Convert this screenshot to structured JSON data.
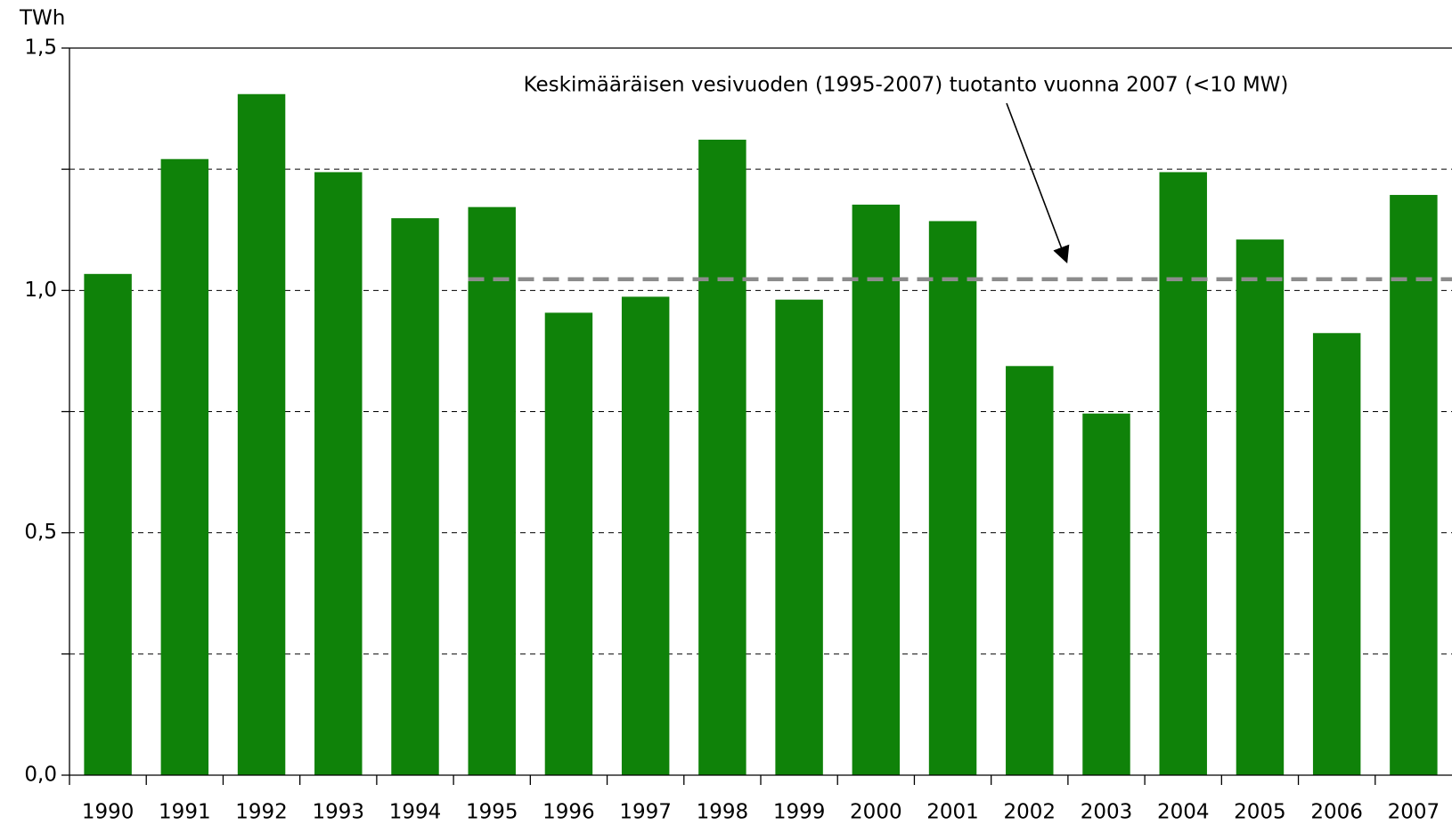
{
  "chart_data": {
    "type": "bar",
    "y_label": "TWh",
    "categories": [
      "1990",
      "1991",
      "1992",
      "1993",
      "1994",
      "1995",
      "1996",
      "1997",
      "1998",
      "1999",
      "2000",
      "2001",
      "2002",
      "2003",
      "2004",
      "2005",
      "2006",
      "2007"
    ],
    "values": [
      1.034,
      1.271,
      1.405,
      1.244,
      1.149,
      1.172,
      0.954,
      0.987,
      1.311,
      0.981,
      1.177,
      1.143,
      0.844,
      0.746,
      1.244,
      1.105,
      0.912,
      1.197
    ],
    "color": "#0f8209",
    "ylim": [
      0,
      1.5
    ],
    "yticks": [
      {
        "value": 0,
        "label": "0,0"
      },
      {
        "value": 0.5,
        "label": "0,5"
      },
      {
        "value": 1,
        "label": "1,0"
      },
      {
        "value": 1.5,
        "label": "1,5"
      }
    ],
    "minor_yticks": [
      0.25,
      0.75,
      1.25
    ],
    "grid": true,
    "reference_line": {
      "value": 1.023,
      "start": "1995",
      "color": "#8c8c8c",
      "label": "Keskimääräisen vesivuoden (1995-2007) tuotanto vuonna 2007 (<10 MW)"
    }
  }
}
